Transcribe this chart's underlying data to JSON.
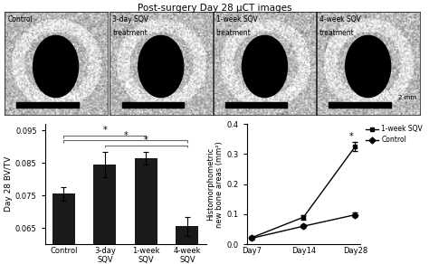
{
  "title": "Post-surgery Day 28 μCT images",
  "bar_categories": [
    "Control",
    "3-day\nSQV",
    "1-week\nSQV",
    "4-week\nSQV"
  ],
  "bar_values": [
    0.0755,
    0.0845,
    0.0865,
    0.0655
  ],
  "bar_errors": [
    0.002,
    0.004,
    0.002,
    0.003
  ],
  "bar_color": "#1a1a1a",
  "bar_ylabel": "Day 28 BV/TV",
  "bar_ylim": [
    0.06,
    0.097
  ],
  "bar_yticks": [
    0.065,
    0.075,
    0.085,
    0.095
  ],
  "line_days": [
    "Day7",
    "Day14",
    "Day28"
  ],
  "line_sqv_values": [
    0.022,
    0.09,
    0.325
  ],
  "line_sqv_errors": [
    0.005,
    0.008,
    0.015
  ],
  "line_ctrl_values": [
    0.02,
    0.06,
    0.098
  ],
  "line_ctrl_errors": [
    0.004,
    0.006,
    0.008
  ],
  "line_ylabel": "Histomorphometric\nnew bone areas (mm²)",
  "line_ylim": [
    0.0,
    0.4
  ],
  "line_yticks": [
    0.0,
    0.1,
    0.2,
    0.3,
    0.4
  ],
  "legend_sqv": "1-week SQV",
  "legend_ctrl": "Control",
  "background_color": "#ffffff",
  "image_panel_labels": [
    "Control",
    "3-day SQV\ntreatment",
    "1-week SQV\ntreatment",
    "4-week SQV\ntreatment"
  ],
  "scalebar_label": "2 mm",
  "img_bg_color": "#c8c8c8"
}
